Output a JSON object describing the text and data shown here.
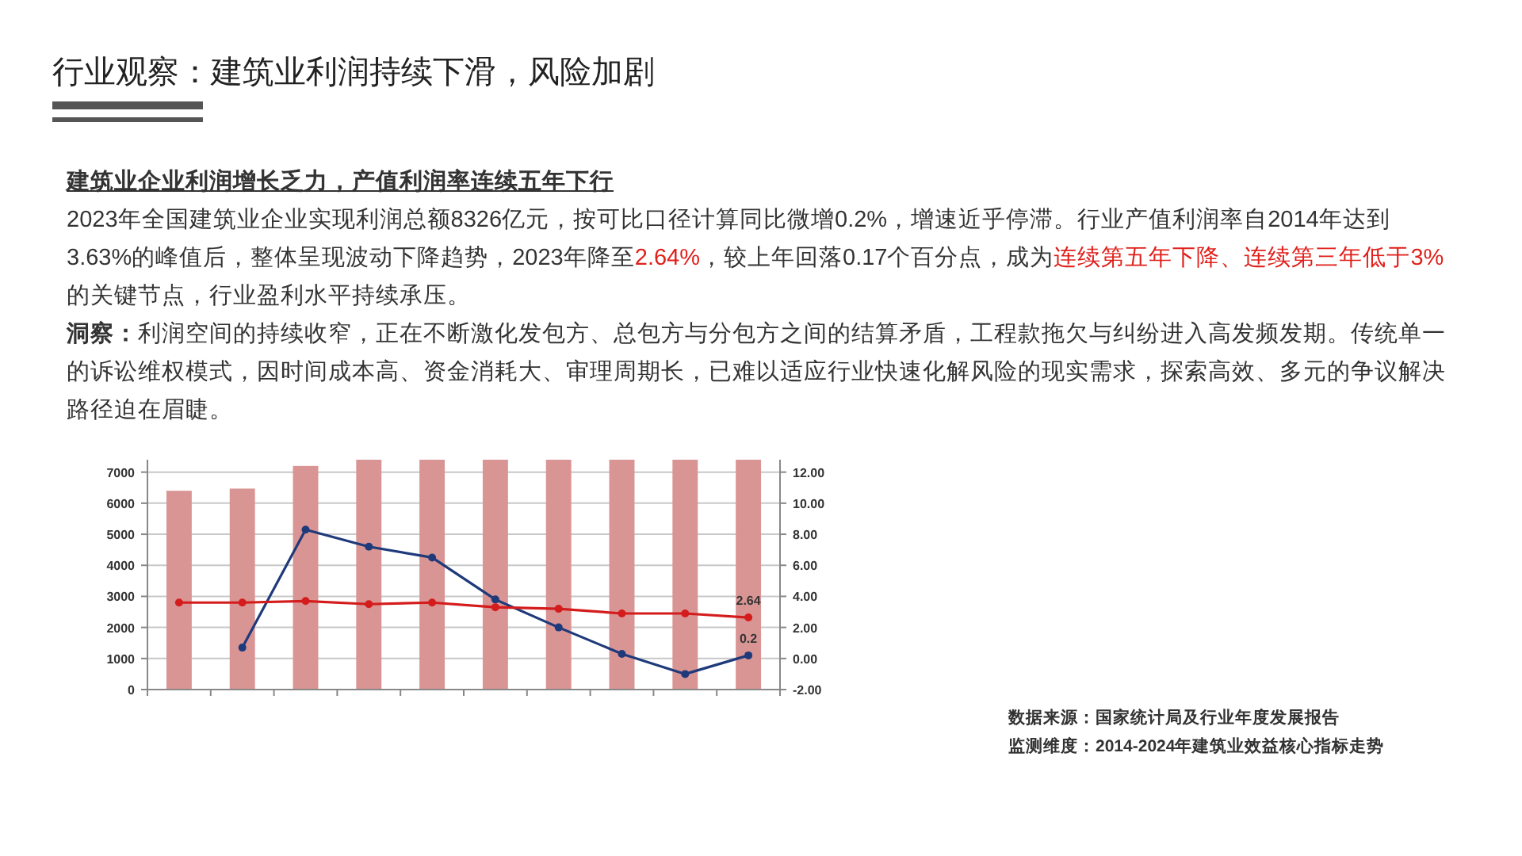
{
  "chart_data": {
    "type": "bar",
    "title": "行业观察：建筑业利润持续下滑，风险加剧",
    "subtitle": "建筑业企业利润增长乏力，产值利润率连续五年下行",
    "annotations": [
      "2023年全国建筑业企业实现利润总额8326亿元，按可比口径计算同比微增0.2%，增速近乎停滞。行业产值利润率自2014年达到3.63%的峰值后，整体呈现波动下降趋势，2023年降至",
      "2.64%",
      "，较上年回落0.17个百分点，成为",
      "连续第五年下降、连续第三年低于3%",
      "的关键节点，行业盈利水平持续承压。",
      "洞察：",
      "利润空间的持续收窄，正在不断激化发包方、总包方与分包方之间的结算矛盾，工程款拖欠与纠纷进入高发频发期。传统单一的诉讼维权模式，因时间成本高、资金消耗大、审理周期长，已难以适应行业快速化解风险的现实需求，探索高效、多元的争议解决路径迫在眉睫。",
      "数据来源：国家统计局及行业年度发展报告",
      "监测维度：2014-2024年建筑业效益核心指标走势"
    ],
    "categories": [
      null,
      null,
      null,
      null,
      null,
      null,
      null,
      null,
      null,
      null
    ],
    "ylim": [
      0,
      7400
    ],
    "yticks": [
      0,
      1000,
      2000,
      3000,
      4000,
      5000,
      6000,
      7000
    ],
    "y2lim": [
      -2,
      12.8
    ],
    "y2ticks": [
      {
        "value": -2,
        "label": "-2.00"
      },
      {
        "value": 0,
        "label": "0.00"
      },
      {
        "value": 2,
        "label": "2.00"
      },
      {
        "value": 4,
        "label": "4.00"
      },
      {
        "value": 6,
        "label": "6.00"
      },
      {
        "value": 8,
        "label": "8.00"
      },
      {
        "value": 10,
        "label": "10.00"
      },
      {
        "value": 12,
        "label": "12.00"
      }
    ],
    "grid": "y",
    "marker": "circle",
    "series": [
      {
        "color": "#d99594",
        "values": [
          6400,
          6470,
          7200,
          7400,
          7400,
          7400,
          7400,
          7400,
          7400,
          7400
        ]
      },
      {
        "type": "line",
        "axis": "y2",
        "color": "#1f3a7a",
        "values": [
          null,
          0.7,
          8.3,
          7.2,
          6.5,
          3.8,
          2.0,
          0.3,
          -1.0,
          0.2
        ],
        "value_labels": [
          null,
          null,
          null,
          null,
          null,
          null,
          null,
          null,
          null,
          "0.2"
        ]
      },
      {
        "type": "line",
        "axis": "y2",
        "color": "#d41c1c",
        "values": [
          3.6,
          3.6,
          3.7,
          3.5,
          3.6,
          3.3,
          3.2,
          2.9,
          2.9,
          2.64
        ],
        "value_labels": [
          null,
          null,
          null,
          null,
          null,
          null,
          null,
          null,
          null,
          "2.64"
        ]
      }
    ]
  }
}
